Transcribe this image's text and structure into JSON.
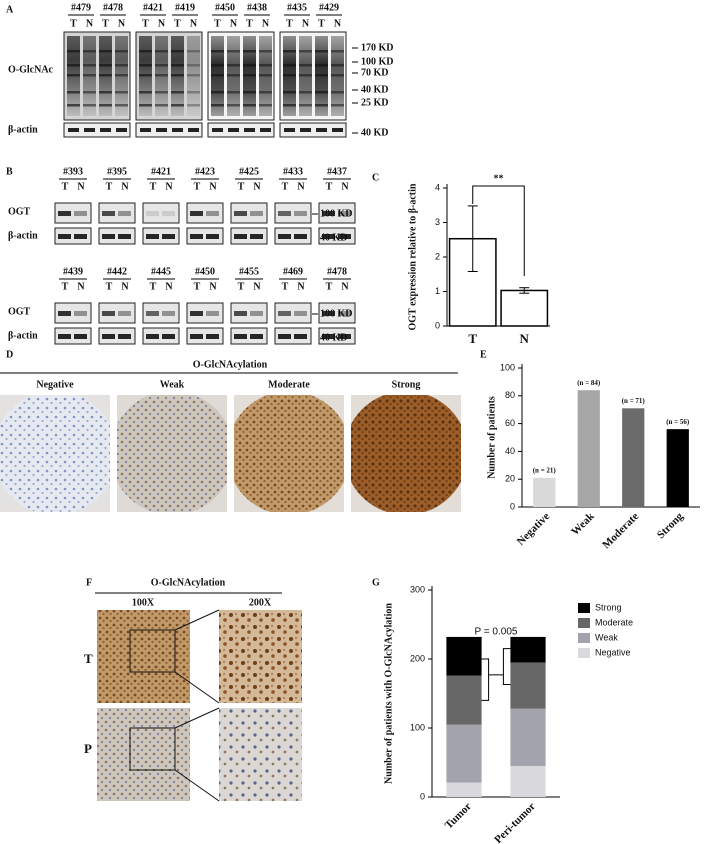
{
  "panel_a": {
    "letter": "A",
    "samples": [
      "#479",
      "#478",
      "#421",
      "#419",
      "#450",
      "#438",
      "#435",
      "#429"
    ],
    "lane_labels": [
      "T",
      "N"
    ],
    "rows": [
      "O-GlcNAc",
      "β-actin"
    ],
    "markers": [
      "170 KD",
      "100 KD",
      "70 KD",
      "40 KD",
      "25 KD",
      "40 KD"
    ]
  },
  "panel_b": {
    "letter": "B",
    "samples": [
      [
        "#393",
        "#395",
        "#421",
        "#423",
        "#425",
        "#433",
        "#437"
      ],
      [
        "#439",
        "#442",
        "#445",
        "#450",
        "#455",
        "#469",
        "#478"
      ]
    ],
    "lane_labels": [
      "T",
      "N"
    ],
    "rows": [
      "OGT",
      "β-actin"
    ],
    "markers": [
      "100 KD",
      "40 KD"
    ]
  },
  "panel_d": {
    "letter": "D",
    "title": "O-GlcNAcylation",
    "labels": [
      "Negative",
      "Weak",
      "Moderate",
      "Strong"
    ]
  },
  "panel_f": {
    "letter": "F",
    "title": "O-GlcNAcylation",
    "columns": [
      "100X",
      "200X"
    ],
    "rows": [
      "T",
      "P"
    ]
  },
  "chart_data": [
    {
      "type": "bar",
      "letter": "C",
      "y_label": "OGT expression relative to β-actin",
      "categories": [
        "T",
        "N"
      ],
      "values": [
        2.53,
        1.03
      ],
      "errors": [
        0.95,
        0.08
      ],
      "color": "#ffffff",
      "ylim": [
        0,
        4
      ],
      "yticks": [
        0,
        1,
        2,
        3,
        4
      ],
      "annotation": "**"
    },
    {
      "type": "bar",
      "letter": "E",
      "y_label": "Number of patients",
      "categories": [
        "Negative",
        "Weak",
        "Moderate",
        "Strong"
      ],
      "values": [
        21,
        84,
        71,
        56
      ],
      "value_labels": [
        "(n = 21)",
        "(n = 84)",
        "(n = 71)",
        "(n = 56)"
      ],
      "colors": [
        "#d9d9d9",
        "#a6a6a6",
        "#6b6b6b",
        "#000000"
      ],
      "ylim": [
        0,
        100
      ],
      "yticks": [
        0,
        20,
        40,
        60,
        80,
        100
      ]
    },
    {
      "type": "stacked_bar",
      "letter": "G",
      "y_label": "Number of patients with O-GlcNAcylation",
      "categories": [
        "Tumor",
        "Peri-tumor"
      ],
      "series": [
        {
          "name": "Negative",
          "color": "#d9d9dd",
          "values": [
            21,
            45
          ]
        },
        {
          "name": "Weak",
          "color": "#a3a3ae",
          "values": [
            84,
            83
          ]
        },
        {
          "name": "Moderate",
          "color": "#676767",
          "values": [
            71,
            67
          ]
        },
        {
          "name": "Strong",
          "color": "#000000",
          "values": [
            56,
            37
          ]
        }
      ],
      "ylim": [
        0,
        300
      ],
      "yticks": [
        0,
        100,
        200,
        300
      ],
      "annotation": "P = 0.005",
      "legend": "upper right"
    }
  ]
}
